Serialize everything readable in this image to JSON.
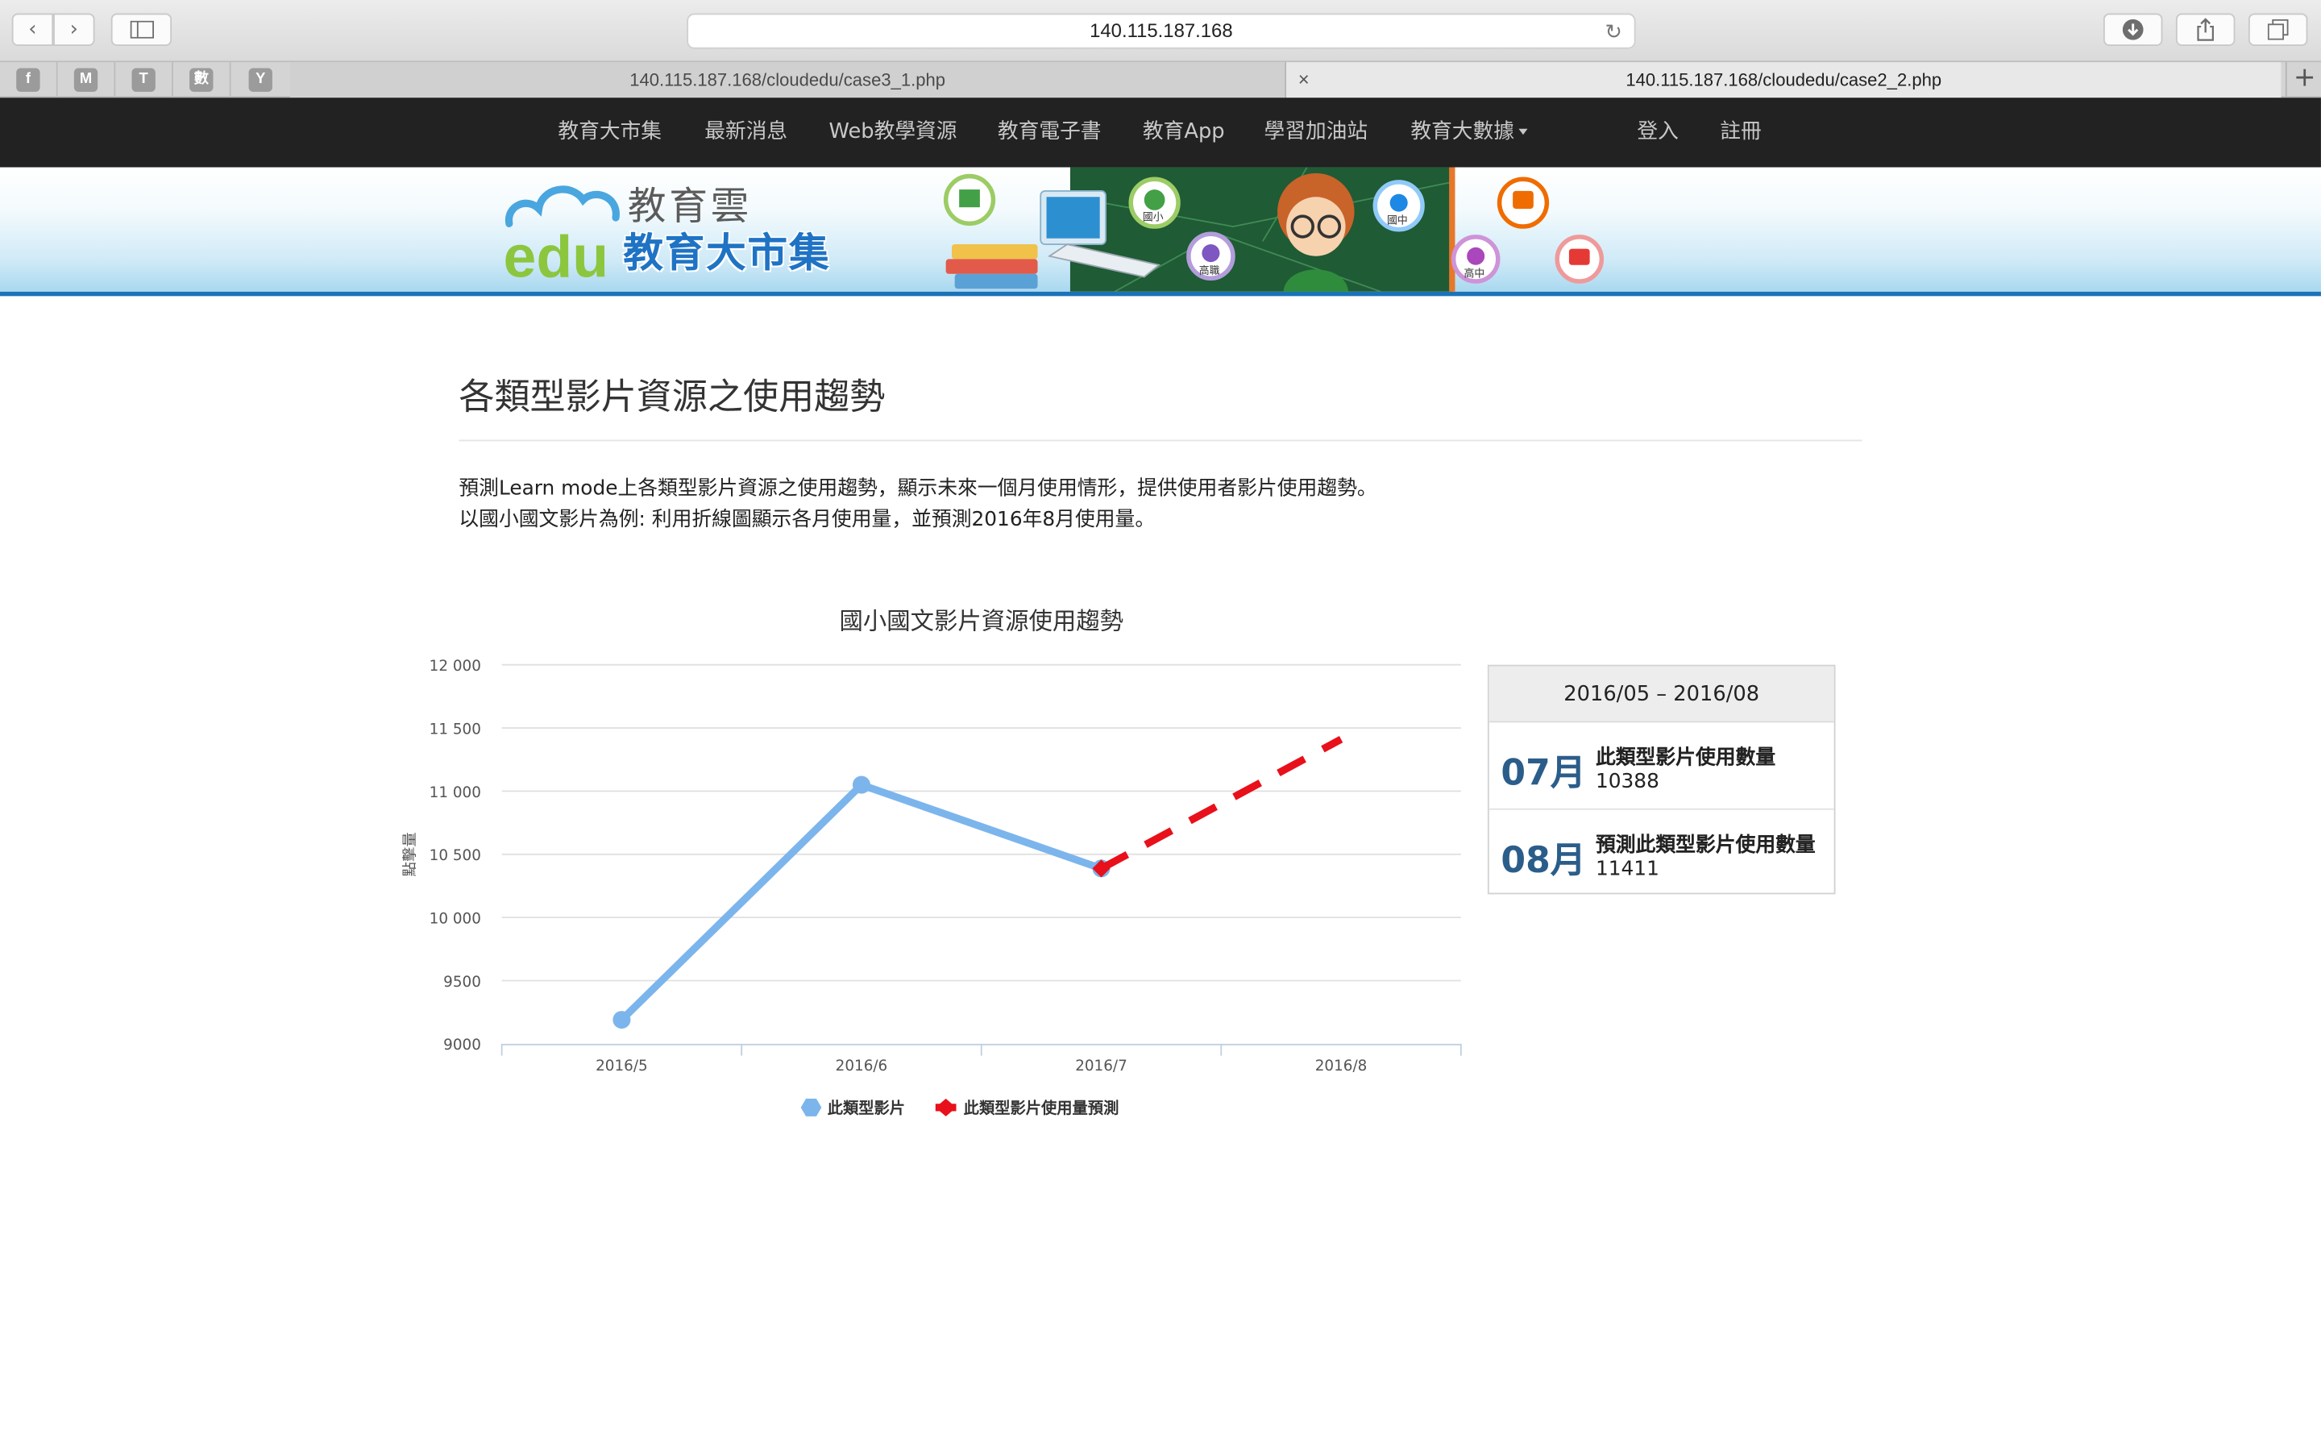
{
  "browser": {
    "url": "140.115.187.168",
    "favorites": [
      "f",
      "M",
      "T",
      "數",
      "Y"
    ],
    "tabs": [
      {
        "title": "140.115.187.168/cloudedu/case3_1.php",
        "active": false
      },
      {
        "title": "140.115.187.168/cloudedu/case2_2.php",
        "active": true
      }
    ]
  },
  "nav": {
    "items": [
      "教育大市集",
      "最新消息",
      "Web教學資源",
      "教育電子書",
      "教育App",
      "學習加油站",
      "教育大數據"
    ],
    "login": "登入",
    "register": "註冊"
  },
  "banner": {
    "logo_top": "教育雲",
    "logo_edu": "edu",
    "logo_bottom": "教育大市集",
    "badges": [
      "國小",
      "高職",
      "國中",
      "高中"
    ]
  },
  "page": {
    "title": "各類型影片資源之使用趨勢",
    "desc_line1": "預測Learn mode上各類型影片資源之使用趨勢，顯示未來一個月使用情形，提供使用者影片使用趨勢。",
    "desc_line2": "以國小國文影片為例: 利用折線圖顯示各月使用量，並預測2016年8月使用量。"
  },
  "chart_data": {
    "type": "line",
    "title": "國小國文影片資源使用趨勢",
    "ylabel": "點擊量",
    "categories": [
      "2016/5",
      "2016/6",
      "2016/7",
      "2016/8"
    ],
    "yticks": [
      "12 000",
      "11 500",
      "11 000",
      "10 500",
      "10 000",
      "9500",
      "9000"
    ],
    "ylim": [
      9000,
      12000
    ],
    "grid": true,
    "legend_position": "bottom-center",
    "series": [
      {
        "name": "此類型影片",
        "color": "#7cb5ec",
        "style": "solid",
        "values": [
          9190,
          11050,
          10388,
          null
        ]
      },
      {
        "name": "此類型影片使用量預測",
        "color": "#e8101a",
        "style": "dashed",
        "values": [
          null,
          null,
          10388,
          11411
        ]
      }
    ]
  },
  "panel": {
    "header": "2016/05 – 2016/08",
    "rows": [
      {
        "month": "07月",
        "label": "此類型影片使用數量",
        "value": "10388"
      },
      {
        "month": "08月",
        "label": "預測此類型影片使用數量",
        "value": "11411"
      }
    ]
  }
}
